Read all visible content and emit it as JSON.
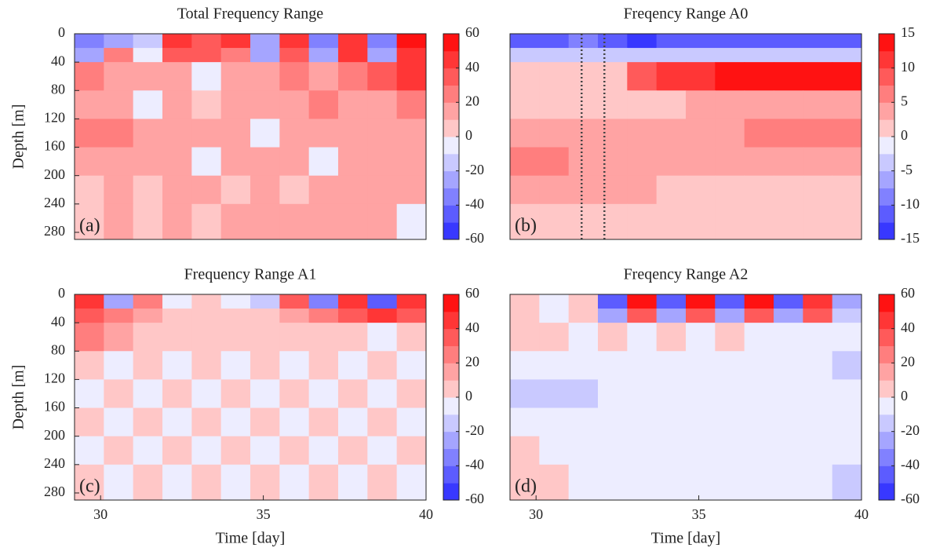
{
  "chart_data": [
    {
      "type": "heatmap",
      "title": "Total Frequency Range",
      "panel_label": "(a)",
      "ylabel": "Depth [m]",
      "x_edges": [
        29.2,
        30.1,
        31.0,
        31.9,
        32.8,
        33.7,
        34.6,
        35.5,
        36.4,
        37.3,
        38.2,
        39.1,
        40.0
      ],
      "y_edges": [
        0,
        20,
        40,
        80,
        120,
        160,
        200,
        240,
        290
      ],
      "z": [
        [
          -40,
          -30,
          -20,
          40,
          30,
          40,
          -30,
          40,
          -40,
          40,
          -40,
          50
        ],
        [
          -30,
          20,
          -10,
          30,
          30,
          20,
          -30,
          30,
          -30,
          40,
          -30,
          40
        ],
        [
          20,
          10,
          10,
          10,
          -10,
          10,
          10,
          20,
          10,
          20,
          30,
          40
        ],
        [
          10,
          10,
          -10,
          10,
          0,
          10,
          10,
          10,
          20,
          10,
          10,
          20
        ],
        [
          20,
          20,
          10,
          10,
          10,
          10,
          -10,
          10,
          10,
          10,
          10,
          10
        ],
        [
          10,
          10,
          10,
          10,
          -10,
          10,
          10,
          10,
          -10,
          10,
          10,
          10
        ],
        [
          0,
          10,
          0,
          10,
          10,
          0,
          10,
          0,
          10,
          10,
          10,
          10
        ],
        [
          0,
          10,
          0,
          10,
          0,
          10,
          10,
          10,
          10,
          10,
          10,
          -10
        ]
      ],
      "xlim": [
        29.2,
        40
      ],
      "ylim": [
        0,
        290
      ],
      "y_reversed": true,
      "yticks": [
        0,
        40,
        80,
        120,
        160,
        200,
        240,
        280
      ],
      "clim": [
        -60,
        60
      ],
      "cticks": [
        -60,
        -40,
        -20,
        0,
        20,
        40,
        60
      ],
      "colors": {
        "low": "#0000ff",
        "mid": "#ffffff",
        "high": "#ff0000"
      }
    },
    {
      "type": "heatmap",
      "title": "Freqency Range A0",
      "panel_label": "(b)",
      "x_edges": [
        29.2,
        30.1,
        31.0,
        31.9,
        32.8,
        33.7,
        34.6,
        35.5,
        36.4,
        37.3,
        38.2,
        39.1,
        40.0
      ],
      "y_edges": [
        0,
        20,
        40,
        80,
        120,
        160,
        200,
        240,
        290
      ],
      "z": [
        [
          -12,
          -12,
          -10,
          -12,
          -13,
          -12,
          -12,
          -12,
          -12,
          -12,
          -12,
          -12
        ],
        [
          -5,
          -3,
          -4,
          -5,
          -4,
          -4,
          -4,
          -5,
          -4,
          -4,
          -4,
          -5
        ],
        [
          1,
          1,
          1,
          1,
          8,
          12,
          12,
          13,
          14,
          14,
          15,
          15
        ],
        [
          2,
          2,
          2,
          2,
          2,
          2,
          3,
          3,
          3,
          3,
          4,
          4
        ],
        [
          3,
          4,
          4,
          4,
          4,
          4,
          4,
          4,
          5,
          5,
          5,
          5
        ],
        [
          6,
          5,
          4,
          4,
          4,
          4,
          4,
          4,
          4,
          3,
          3,
          3
        ],
        [
          3,
          3,
          3,
          3,
          3,
          2,
          2,
          2,
          2,
          2,
          2,
          2
        ],
        [
          1,
          1,
          1,
          1,
          2,
          2,
          2,
          2,
          1,
          1,
          1,
          1
        ]
      ],
      "xlim": [
        29.2,
        40
      ],
      "ylim": [
        0,
        290
      ],
      "y_reversed": true,
      "clim": [
        -15,
        15
      ],
      "cticks": [
        -15,
        -10,
        -5,
        0,
        5,
        10,
        15
      ],
      "vlines": [
        31.4,
        32.1
      ],
      "colors": {
        "low": "#0000ff",
        "mid": "#ffffff",
        "high": "#ff0000"
      }
    },
    {
      "type": "heatmap",
      "title": "Frequency Range A1",
      "panel_label": "(c)",
      "ylabel": "Depth [m]",
      "xlabel": "Time [day]",
      "x_edges": [
        29.2,
        30.1,
        31.0,
        31.9,
        32.8,
        33.7,
        34.6,
        35.5,
        36.4,
        37.3,
        38.2,
        39.1,
        40.0
      ],
      "y_edges": [
        0,
        20,
        40,
        80,
        120,
        160,
        200,
        240,
        290
      ],
      "z": [
        [
          40,
          -30,
          20,
          -10,
          0,
          -5,
          -20,
          30,
          -40,
          40,
          -50,
          40
        ],
        [
          30,
          20,
          10,
          0,
          0,
          0,
          0,
          10,
          20,
          30,
          40,
          30
        ],
        [
          20,
          10,
          5,
          5,
          0,
          0,
          0,
          0,
          0,
          0,
          -5,
          0
        ],
        [
          3,
          -3,
          3,
          -3,
          3,
          -3,
          3,
          -3,
          3,
          -3,
          3,
          -3
        ],
        [
          -3,
          3,
          -3,
          3,
          -3,
          3,
          -3,
          3,
          -3,
          3,
          -3,
          3
        ],
        [
          3,
          -3,
          3,
          -3,
          3,
          -3,
          3,
          -3,
          3,
          -3,
          3,
          -3
        ],
        [
          -3,
          3,
          -3,
          3,
          -3,
          3,
          -3,
          3,
          -3,
          3,
          -3,
          3
        ],
        [
          3,
          -3,
          3,
          -3,
          3,
          -3,
          3,
          -3,
          3,
          -3,
          3,
          -3
        ]
      ],
      "xlim": [
        29.2,
        40
      ],
      "ylim": [
        0,
        290
      ],
      "y_reversed": true,
      "xticks": [
        30,
        35,
        40
      ],
      "yticks": [
        0,
        40,
        80,
        120,
        160,
        200,
        240,
        280
      ],
      "clim": [
        -60,
        60
      ],
      "cticks": [
        -60,
        -40,
        -20,
        0,
        20,
        40,
        60
      ],
      "colors": {
        "low": "#0000ff",
        "mid": "#ffffff",
        "high": "#ff0000"
      }
    },
    {
      "type": "heatmap",
      "title": "Freqency Range A2",
      "panel_label": "(d)",
      "xlabel": "Time [day]",
      "x_edges": [
        29.2,
        30.1,
        31.0,
        31.9,
        32.8,
        33.7,
        34.6,
        35.5,
        36.4,
        37.3,
        38.2,
        39.1,
        40.0
      ],
      "y_edges": [
        0,
        20,
        40,
        80,
        120,
        160,
        200,
        240,
        290
      ],
      "z": [
        [
          5,
          -5,
          5,
          -50,
          50,
          -50,
          50,
          -50,
          50,
          -50,
          40,
          -30
        ],
        [
          5,
          -5,
          5,
          -30,
          30,
          -30,
          30,
          -30,
          30,
          -30,
          30,
          -20
        ],
        [
          0,
          5,
          -5,
          5,
          -5,
          5,
          -5,
          5,
          -5,
          -5,
          -10,
          -10
        ],
        [
          -10,
          -10,
          -10,
          -10,
          -5,
          -5,
          -5,
          -5,
          -5,
          -10,
          -10,
          -15
        ],
        [
          -15,
          -15,
          -15,
          -10,
          -10,
          -10,
          -5,
          -5,
          -5,
          -10,
          -10,
          -10
        ],
        [
          -10,
          -10,
          -10,
          -10,
          -5,
          -5,
          -5,
          -5,
          -5,
          -5,
          -5,
          -5
        ],
        [
          0,
          -5,
          -5,
          -5,
          -5,
          -5,
          -5,
          -5,
          -5,
          -5,
          -5,
          -5
        ],
        [
          0,
          0,
          -5,
          -10,
          -10,
          -10,
          -10,
          -10,
          -10,
          -10,
          -10,
          -15
        ]
      ],
      "xlim": [
        29.2,
        40
      ],
      "ylim": [
        0,
        290
      ],
      "y_reversed": true,
      "xticks": [
        30,
        35,
        40
      ],
      "clim": [
        -60,
        60
      ],
      "cticks": [
        -60,
        -40,
        -20,
        0,
        20,
        40,
        60
      ],
      "colors": {
        "low": "#0000ff",
        "mid": "#ffffff",
        "high": "#ff0000"
      }
    }
  ]
}
